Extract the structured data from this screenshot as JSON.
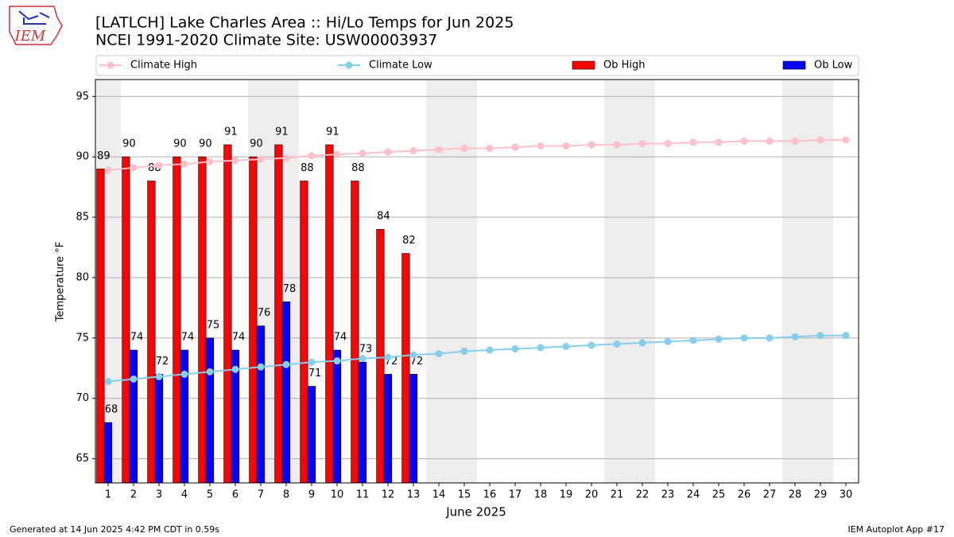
{
  "chart_data": {
    "type": "bar",
    "title": "[LATLCH] Lake Charles Area :: Hi/Lo Temps for Jun 2025",
    "subtitle": "NCEI 1991-2020 Climate Site: USW00003937",
    "logo": "IEM",
    "x_label": "June 2025",
    "y_label": "Temperature °F",
    "annotations": [
      "Generated at 14 Jun 2025 4:42 PM CDT in 0.59s",
      "IEM Autoplot App #17"
    ],
    "x": [
      1,
      2,
      3,
      4,
      5,
      6,
      7,
      8,
      9,
      10,
      11,
      12,
      13,
      14,
      15,
      16,
      17,
      18,
      19,
      20,
      21,
      22,
      23,
      24,
      25,
      26,
      27,
      28,
      29,
      30
    ],
    "xlim": [
      0.5,
      30.5
    ],
    "xticks": [
      1,
      2,
      3,
      4,
      5,
      6,
      7,
      8,
      9,
      10,
      11,
      12,
      13,
      14,
      15,
      16,
      17,
      18,
      19,
      20,
      21,
      22,
      23,
      24,
      25,
      26,
      27,
      28,
      29,
      30
    ],
    "ylim": [
      63,
      96.4
    ],
    "yticks": [
      65,
      70,
      75,
      80,
      85,
      90,
      95
    ],
    "grid": true,
    "legend": "top",
    "series": [
      {
        "name": "Climate High",
        "type": "line",
        "color": "#ffc0cb",
        "values": [
          88.9,
          89.1,
          89.3,
          89.4,
          89.6,
          89.7,
          89.8,
          89.9,
          90.1,
          90.2,
          90.3,
          90.4,
          90.5,
          90.6,
          90.7,
          90.7,
          90.8,
          90.9,
          90.9,
          91.0,
          91.0,
          91.1,
          91.1,
          91.2,
          91.2,
          91.3,
          91.3,
          91.3,
          91.4,
          91.4
        ]
      },
      {
        "name": "Climate Low",
        "type": "line",
        "color": "#87ceeb",
        "values": [
          71.4,
          71.6,
          71.8,
          72.0,
          72.2,
          72.4,
          72.6,
          72.8,
          73.0,
          73.1,
          73.3,
          73.4,
          73.6,
          73.7,
          73.9,
          74.0,
          74.1,
          74.2,
          74.3,
          74.4,
          74.5,
          74.6,
          74.7,
          74.8,
          74.9,
          75.0,
          75.0,
          75.1,
          75.2,
          75.2
        ]
      },
      {
        "name": "Ob High",
        "type": "bar",
        "color": "#ff0000",
        "values": [
          89,
          90,
          88,
          90,
          90,
          91,
          90,
          91,
          88,
          91,
          88,
          84,
          82,
          null,
          null,
          null,
          null,
          null,
          null,
          null,
          null,
          null,
          null,
          null,
          null,
          null,
          null,
          null,
          null,
          null
        ]
      },
      {
        "name": "Ob Low",
        "type": "bar",
        "color": "#0000ff",
        "values": [
          68,
          74,
          72,
          74,
          75,
          74,
          76,
          78,
          71,
          74,
          73,
          72,
          72,
          null,
          null,
          null,
          null,
          null,
          null,
          null,
          null,
          null,
          null,
          null,
          null,
          null,
          null,
          null,
          null,
          null
        ]
      }
    ]
  }
}
